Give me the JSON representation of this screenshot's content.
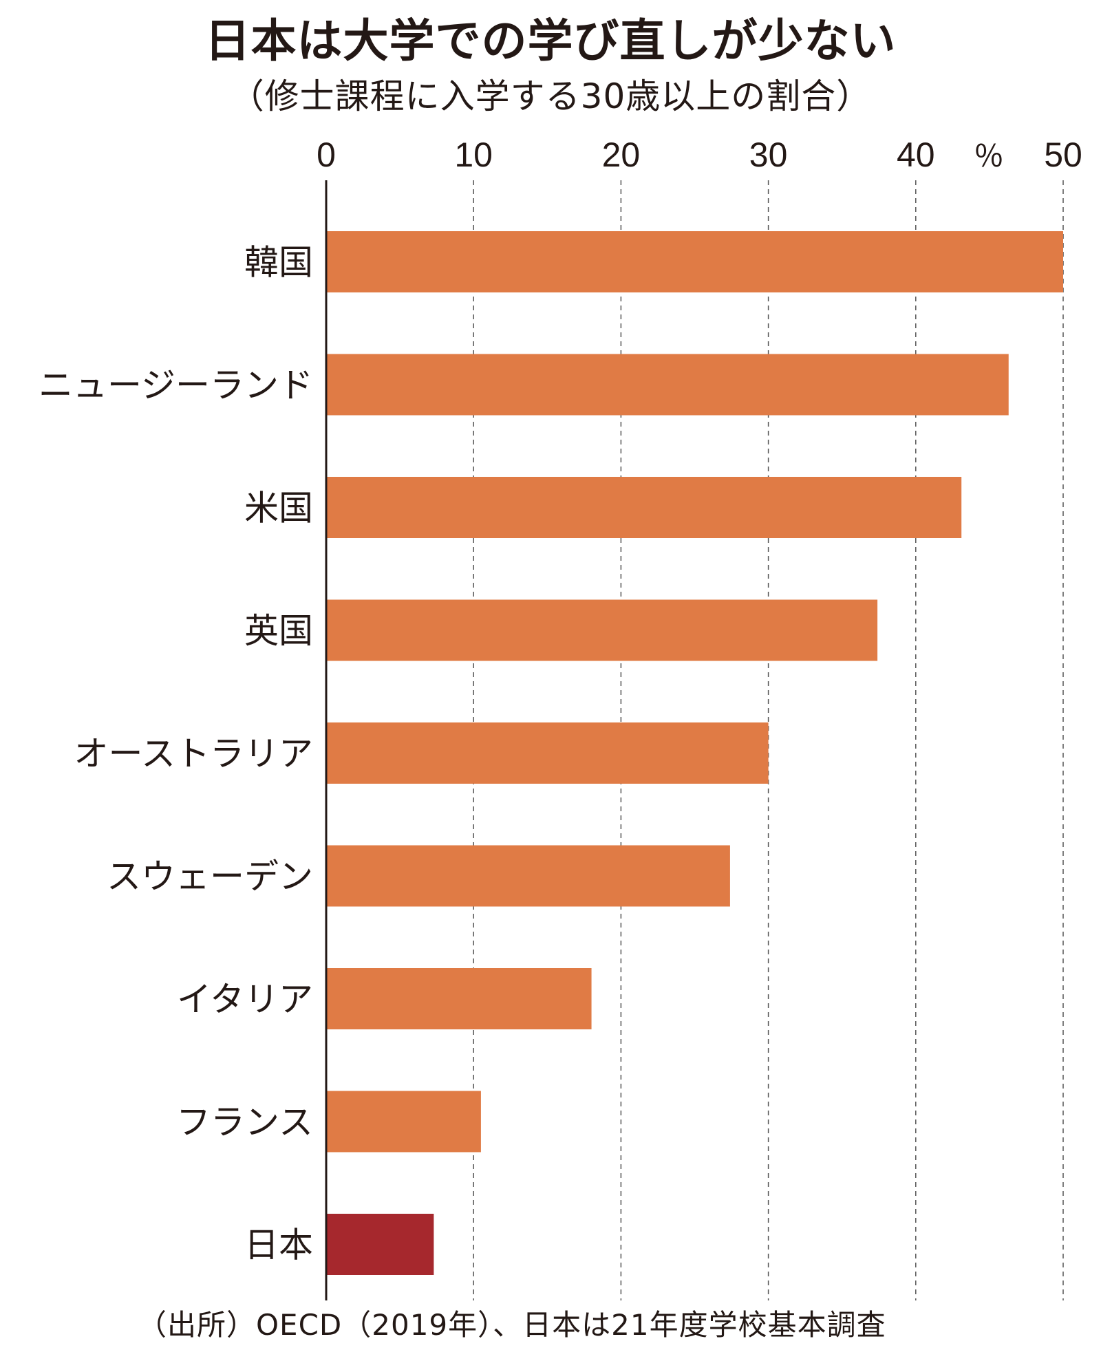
{
  "chart_data": {
    "type": "bar",
    "orientation": "horizontal",
    "title": "日本は大学での学び直しが少ない",
    "subtitle": "（修士課程に入学する30歳以上の割合）",
    "unit_label": "％",
    "categories": [
      "韓国",
      "ニュージーランド",
      "米国",
      "英国",
      "オーストラリア",
      "スウェーデン",
      "イタリア",
      "フランス",
      "日本"
    ],
    "values": [
      50,
      46.3,
      43.1,
      37.4,
      30.0,
      27.4,
      18.0,
      10.5,
      7.3
    ],
    "xlim": [
      0,
      50
    ],
    "xticks": [
      0,
      10,
      20,
      30,
      40,
      50
    ],
    "grid": "vertical dashed",
    "colors": {
      "default": "#E07B45",
      "highlight": "#A6282D"
    },
    "highlight_category": "日本",
    "source": "（出所）OECD（2019年）、日本は21年度学校基本調査"
  }
}
